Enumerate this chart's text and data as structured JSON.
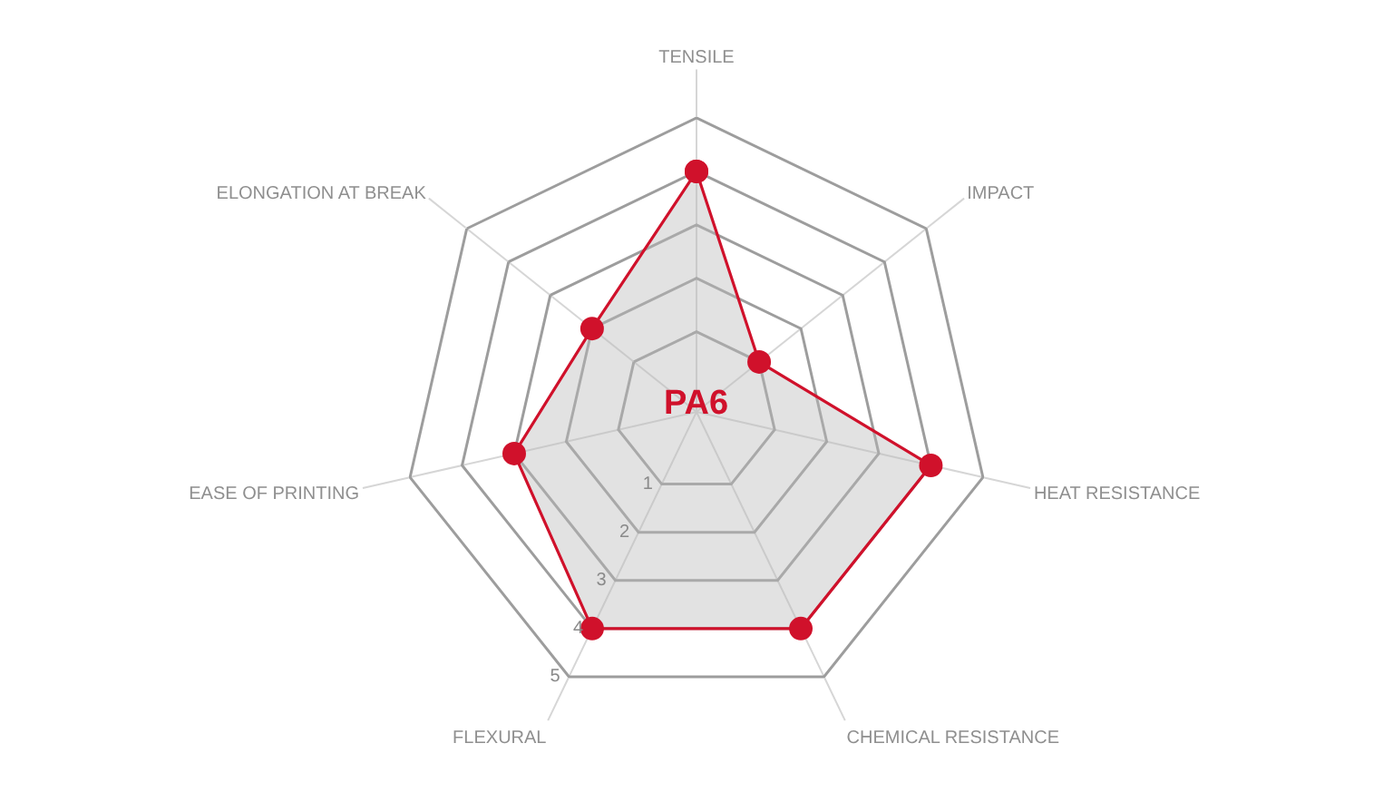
{
  "chart_data": {
    "type": "radar",
    "categories": [
      "TENSILE",
      "IMPACT",
      "HEAT RESISTANCE",
      "CHEMICAL RESISTANCE",
      "FLEXURAL",
      "EASE OF PRINTING",
      "ELONGATION AT BREAK"
    ],
    "series": [
      {
        "name": "PA6",
        "color": "#d0112b",
        "values": [
          4,
          1,
          4,
          4,
          4,
          3,
          2
        ]
      }
    ],
    "ylim": [
      -0.5,
      5
    ],
    "yticks": [
      1,
      2,
      3,
      4,
      5
    ],
    "grid": true,
    "legend": false,
    "marker": "circle",
    "line_style": "solid"
  }
}
